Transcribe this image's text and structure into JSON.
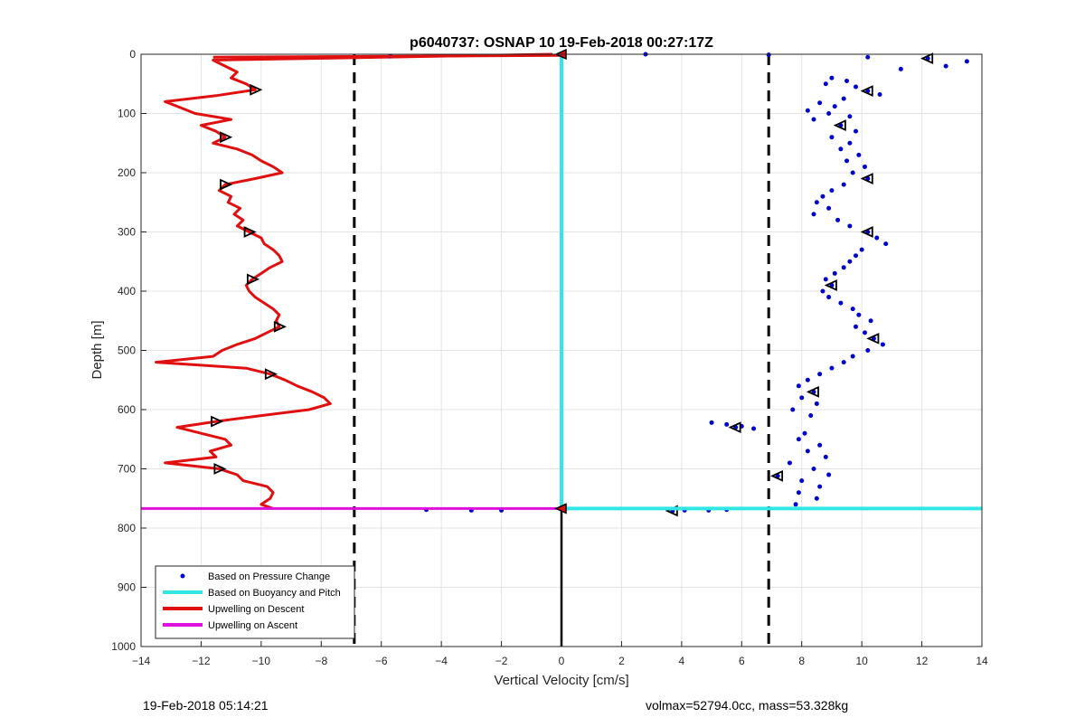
{
  "chart_data": {
    "type": "scatter",
    "title": "p6040737: OSNAP 10 19-Feb-2018 00:27:17Z",
    "xlabel": "Vertical Velocity [cm/s]",
    "ylabel": "Depth [m]",
    "xlim": [
      -14,
      14
    ],
    "ylim": [
      0,
      1000
    ],
    "y_reversed": true,
    "grid": true,
    "xticks": [
      -14,
      -12,
      -10,
      -8,
      -6,
      -4,
      -2,
      0,
      2,
      4,
      6,
      8,
      10,
      12,
      14
    ],
    "yticks": [
      0,
      100,
      200,
      300,
      400,
      500,
      600,
      700,
      800,
      900,
      1000
    ],
    "legend": {
      "location": "bottom-left",
      "entries": [
        {
          "label": "Based on Pressure Change",
          "color": "#0000cc",
          "style": "dots"
        },
        {
          "label": "Based on Buoyancy and Pitch",
          "color": "#33e6e6",
          "style": "line"
        },
        {
          "label": "Upwelling on Descent",
          "color": "#e01010",
          "style": "line"
        },
        {
          "label": "Upwelling on Ascent",
          "color": "#dd11dd",
          "style": "line"
        }
      ]
    },
    "reference_lines": {
      "dashed_velocities": [
        -6.9,
        6.9
      ],
      "max_depth": 767,
      "zero_line": 0
    },
    "series": [
      {
        "name": "Upwelling on Descent",
        "color": "#e01010",
        "depth": [
          0,
          10,
          20,
          30,
          40,
          50,
          60,
          70,
          80,
          90,
          100,
          110,
          120,
          130,
          140,
          150,
          160,
          170,
          180,
          190,
          200,
          210,
          220,
          230,
          240,
          250,
          260,
          270,
          280,
          290,
          300,
          310,
          320,
          330,
          340,
          350,
          360,
          370,
          380,
          390,
          400,
          410,
          420,
          430,
          440,
          450,
          460,
          470,
          480,
          490,
          500,
          510,
          520,
          530,
          540,
          550,
          560,
          570,
          580,
          590,
          600,
          610,
          620,
          630,
          640,
          650,
          660,
          670,
          680,
          690,
          700,
          710,
          720,
          730,
          740,
          750,
          760,
          767
        ],
        "velocity": [
          -0.3,
          -11.6,
          -11.2,
          -10.8,
          -11.0,
          -10.5,
          -10.2,
          -11.5,
          -13.2,
          -12.7,
          -12.2,
          -11.0,
          -12.0,
          -11.5,
          -11.2,
          -11.6,
          -10.8,
          -10.3,
          -10.0,
          -9.6,
          -9.3,
          -10.2,
          -11.2,
          -11.4,
          -11.0,
          -11.1,
          -10.7,
          -10.9,
          -10.6,
          -10.8,
          -10.4,
          -10.0,
          -9.9,
          -9.6,
          -9.4,
          -9.3,
          -9.7,
          -10.0,
          -10.3,
          -10.5,
          -10.4,
          -10.2,
          -9.9,
          -9.6,
          -9.4,
          -9.5,
          -9.4,
          -9.8,
          -10.2,
          -10.8,
          -11.3,
          -11.6,
          -13.5,
          -10.5,
          -9.7,
          -9.2,
          -8.8,
          -8.3,
          -7.9,
          -7.7,
          -8.4,
          -10.0,
          -11.5,
          -12.8,
          -12.0,
          -11.2,
          -11.0,
          -11.7,
          -11.5,
          -13.2,
          -11.4,
          -10.8,
          -10.6,
          -9.8,
          -9.6,
          -9.7,
          -10.0,
          -9.6
        ]
      },
      {
        "name": "Based on Pressure Change",
        "color": "#0000cc",
        "points": [
          [
            2.8,
            0
          ],
          [
            6.9,
            1
          ],
          [
            10.2,
            5
          ],
          [
            12.2,
            7
          ],
          [
            13.5,
            12
          ],
          [
            12.8,
            20
          ],
          [
            11.3,
            25
          ],
          [
            -5.7,
            3
          ],
          [
            9.0,
            40
          ],
          [
            9.5,
            45
          ],
          [
            8.8,
            50
          ],
          [
            9.8,
            55
          ],
          [
            10.2,
            62
          ],
          [
            10.6,
            68
          ],
          [
            9.4,
            75
          ],
          [
            8.6,
            82
          ],
          [
            9.1,
            88
          ],
          [
            8.2,
            95
          ],
          [
            8.9,
            100
          ],
          [
            9.6,
            105
          ],
          [
            8.4,
            110
          ],
          [
            9.3,
            120
          ],
          [
            9.8,
            130
          ],
          [
            9.0,
            140
          ],
          [
            9.6,
            150
          ],
          [
            9.3,
            160
          ],
          [
            9.9,
            170
          ],
          [
            9.5,
            180
          ],
          [
            10.1,
            190
          ],
          [
            9.7,
            200
          ],
          [
            10.2,
            210
          ],
          [
            9.4,
            220
          ],
          [
            9.0,
            230
          ],
          [
            8.7,
            240
          ],
          [
            8.5,
            250
          ],
          [
            8.9,
            260
          ],
          [
            8.4,
            270
          ],
          [
            9.2,
            280
          ],
          [
            9.6,
            290
          ],
          [
            10.2,
            300
          ],
          [
            10.5,
            310
          ],
          [
            10.8,
            320
          ],
          [
            10.0,
            330
          ],
          [
            9.8,
            340
          ],
          [
            9.6,
            350
          ],
          [
            9.4,
            360
          ],
          [
            9.1,
            370
          ],
          [
            8.8,
            380
          ],
          [
            9.0,
            390
          ],
          [
            8.7,
            400
          ],
          [
            8.9,
            410
          ],
          [
            9.3,
            420
          ],
          [
            9.7,
            430
          ],
          [
            9.9,
            440
          ],
          [
            10.3,
            450
          ],
          [
            9.8,
            460
          ],
          [
            10.1,
            470
          ],
          [
            10.4,
            480
          ],
          [
            10.7,
            490
          ],
          [
            10.2,
            500
          ],
          [
            9.7,
            510
          ],
          [
            9.4,
            520
          ],
          [
            9.0,
            530
          ],
          [
            8.6,
            540
          ],
          [
            8.2,
            550
          ],
          [
            7.9,
            560
          ],
          [
            8.4,
            570
          ],
          [
            8.0,
            580
          ],
          [
            8.5,
            590
          ],
          [
            7.7,
            600
          ],
          [
            8.3,
            610
          ],
          [
            5.0,
            622
          ],
          [
            5.5,
            625
          ],
          [
            6.0,
            628
          ],
          [
            6.4,
            632
          ],
          [
            5.8,
            630
          ],
          [
            8.1,
            640
          ],
          [
            7.9,
            650
          ],
          [
            8.6,
            660
          ],
          [
            8.2,
            670
          ],
          [
            8.8,
            680
          ],
          [
            7.6,
            690
          ],
          [
            8.4,
            700
          ],
          [
            8.9,
            710
          ],
          [
            7.2,
            712
          ],
          [
            8.0,
            720
          ],
          [
            8.6,
            730
          ],
          [
            7.9,
            740
          ],
          [
            8.5,
            750
          ],
          [
            7.8,
            760
          ],
          [
            -4.5,
            769
          ],
          [
            -3.0,
            770
          ],
          [
            -2.0,
            770
          ],
          [
            3.7,
            771
          ],
          [
            4.1,
            770
          ],
          [
            4.9,
            770
          ],
          [
            5.5,
            769
          ]
        ]
      },
      {
        "name": "Based on Buoyancy and Pitch",
        "color": "#33e6e6",
        "depth": [
          0,
          767
        ],
        "velocity": [
          0,
          0
        ]
      },
      {
        "name": "Upwelling on Ascent",
        "color": "#dd11dd",
        "depth": [
          767,
          767
        ],
        "velocity": [
          -14,
          0
        ]
      }
    ]
  },
  "footer": {
    "timestamp": "19-Feb-2018 05:14:21",
    "info": "volmax=52794.0cc, mass=53.328kg"
  }
}
